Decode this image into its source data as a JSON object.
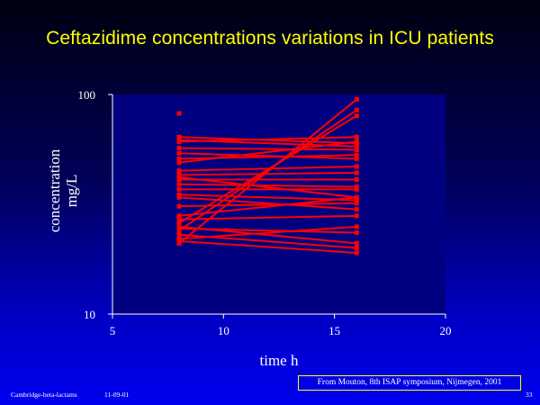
{
  "slide": {
    "title": "Ceftazidime concentrations variations in ICU patients",
    "source": "From Mouton, 8th ISAP symposium, Nijmegen, 2001",
    "footer_left": "Cambridge-beta-lactams",
    "footer_date": "11-09-01",
    "page_number": "33"
  },
  "colors": {
    "background_top": "#000010",
    "background_bottom": "#0000f0",
    "title": "#ffff00",
    "plot_area": "#000080",
    "series": "#ff0000"
  },
  "chart_data": {
    "type": "line",
    "title": "Ceftazidime concentrations variations in ICU patients",
    "xlabel": "time h",
    "ylabel": "concentration mg/L",
    "xlim": [
      5,
      20
    ],
    "ylim": [
      10,
      100
    ],
    "y_scale": "log",
    "x_ticks": [
      "5",
      "10",
      "15",
      "20"
    ],
    "y_ticks": [
      "10",
      "100"
    ],
    "grid": false,
    "legend": "none",
    "single_points": [
      {
        "x": 8,
        "y": 82
      }
    ],
    "series": [
      {
        "values": [
          [
            8,
            21
          ],
          [
            16,
            95
          ]
        ]
      },
      {
        "values": [
          [
            8,
            24
          ],
          [
            16,
            85
          ]
        ]
      },
      {
        "values": [
          [
            8,
            26
          ],
          [
            16,
            80
          ]
        ]
      },
      {
        "values": [
          [
            8,
            64
          ],
          [
            16,
            60
          ]
        ]
      },
      {
        "values": [
          [
            8,
            62
          ],
          [
            16,
            58
          ]
        ]
      },
      {
        "values": [
          [
            8,
            61
          ],
          [
            16,
            64
          ]
        ]
      },
      {
        "values": [
          [
            8,
            57
          ],
          [
            16,
            56
          ]
        ]
      },
      {
        "values": [
          [
            8,
            54
          ],
          [
            16,
            51
          ]
        ]
      },
      {
        "values": [
          [
            8,
            51
          ],
          [
            16,
            53
          ]
        ]
      },
      {
        "values": [
          [
            8,
            49
          ],
          [
            16,
            61
          ]
        ]
      },
      {
        "values": [
          [
            8,
            45
          ],
          [
            16,
            47
          ]
        ]
      },
      {
        "values": [
          [
            8,
            43
          ],
          [
            16,
            44
          ]
        ]
      },
      {
        "values": [
          [
            8,
            42
          ],
          [
            16,
            34
          ]
        ]
      },
      {
        "values": [
          [
            8,
            41
          ],
          [
            16,
            41
          ]
        ]
      },
      {
        "values": [
          [
            8,
            39
          ],
          [
            16,
            38
          ]
        ]
      },
      {
        "values": [
          [
            8,
            37
          ],
          [
            16,
            37
          ]
        ]
      },
      {
        "values": [
          [
            8,
            35
          ],
          [
            16,
            33
          ]
        ]
      },
      {
        "values": [
          [
            8,
            34
          ],
          [
            16,
            30
          ]
        ]
      },
      {
        "values": [
          [
            8,
            31
          ],
          [
            16,
            32
          ]
        ]
      },
      {
        "values": [
          [
            8,
            28
          ],
          [
            16,
            34
          ]
        ]
      },
      {
        "values": [
          [
            8,
            27
          ],
          [
            16,
            28
          ]
        ]
      },
      {
        "values": [
          [
            8,
            25
          ],
          [
            16,
            21
          ]
        ]
      },
      {
        "values": [
          [
            8,
            24.5
          ],
          [
            16,
            23.5
          ]
        ]
      },
      {
        "values": [
          [
            8,
            23
          ],
          [
            16,
            20
          ]
        ]
      },
      {
        "values": [
          [
            8,
            22
          ],
          [
            16,
            25
          ]
        ]
      },
      {
        "values": [
          [
            8,
            21.5
          ],
          [
            16,
            19
          ]
        ]
      }
    ]
  }
}
